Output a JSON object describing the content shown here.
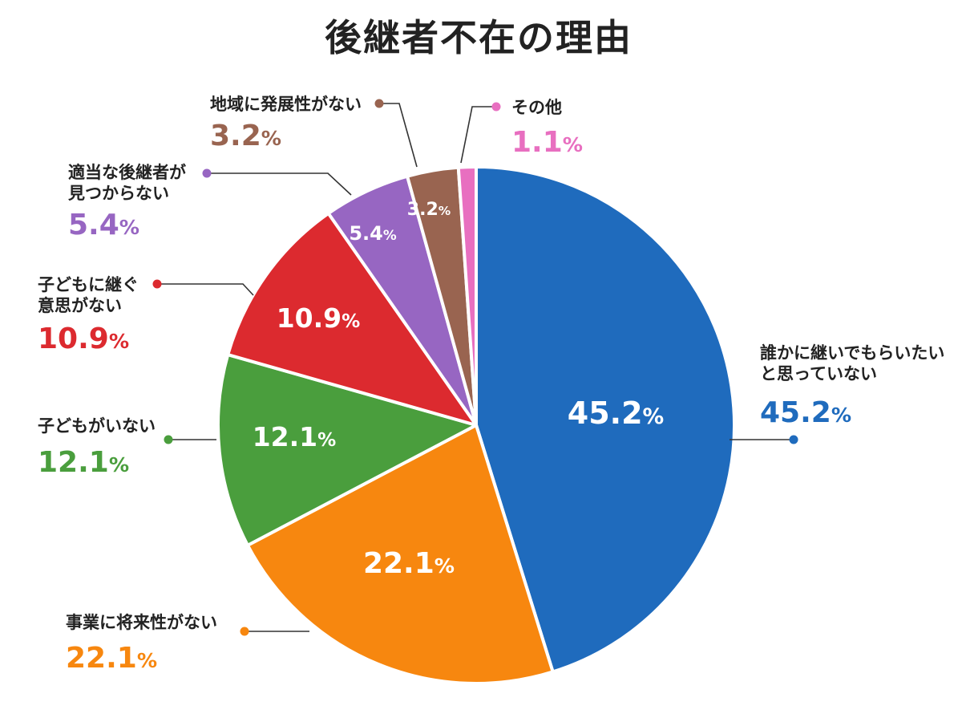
{
  "chart_data": {
    "type": "pie",
    "title": "後継者不在の理由",
    "unit": "%",
    "slices": [
      {
        "name_lines": [
          "誰かに継いでもらいたい",
          "と思っていない"
        ],
        "value": 45.2,
        "label": "45.2",
        "color": "#1f6bbd"
      },
      {
        "name_lines": [
          "事業に将来性がない"
        ],
        "value": 22.1,
        "label": "22.1",
        "color": "#f7870f"
      },
      {
        "name_lines": [
          "子どもがいない"
        ],
        "value": 12.1,
        "label": "12.1",
        "color": "#4a9e3d"
      },
      {
        "name_lines": [
          "子どもに継ぐ",
          "意思がない"
        ],
        "value": 10.9,
        "label": "10.9",
        "color": "#dc2a2f"
      },
      {
        "name_lines": [
          "適当な後継者が",
          "見つからない"
        ],
        "value": 5.4,
        "label": "5.4",
        "color": "#9766c2"
      },
      {
        "name_lines": [
          "地域に発展性がない"
        ],
        "value": 3.2,
        "label": "3.2",
        "color": "#996450"
      },
      {
        "name_lines": [
          "その他"
        ],
        "value": 1.1,
        "label": "1.1",
        "color": "#e86fc0"
      }
    ]
  }
}
